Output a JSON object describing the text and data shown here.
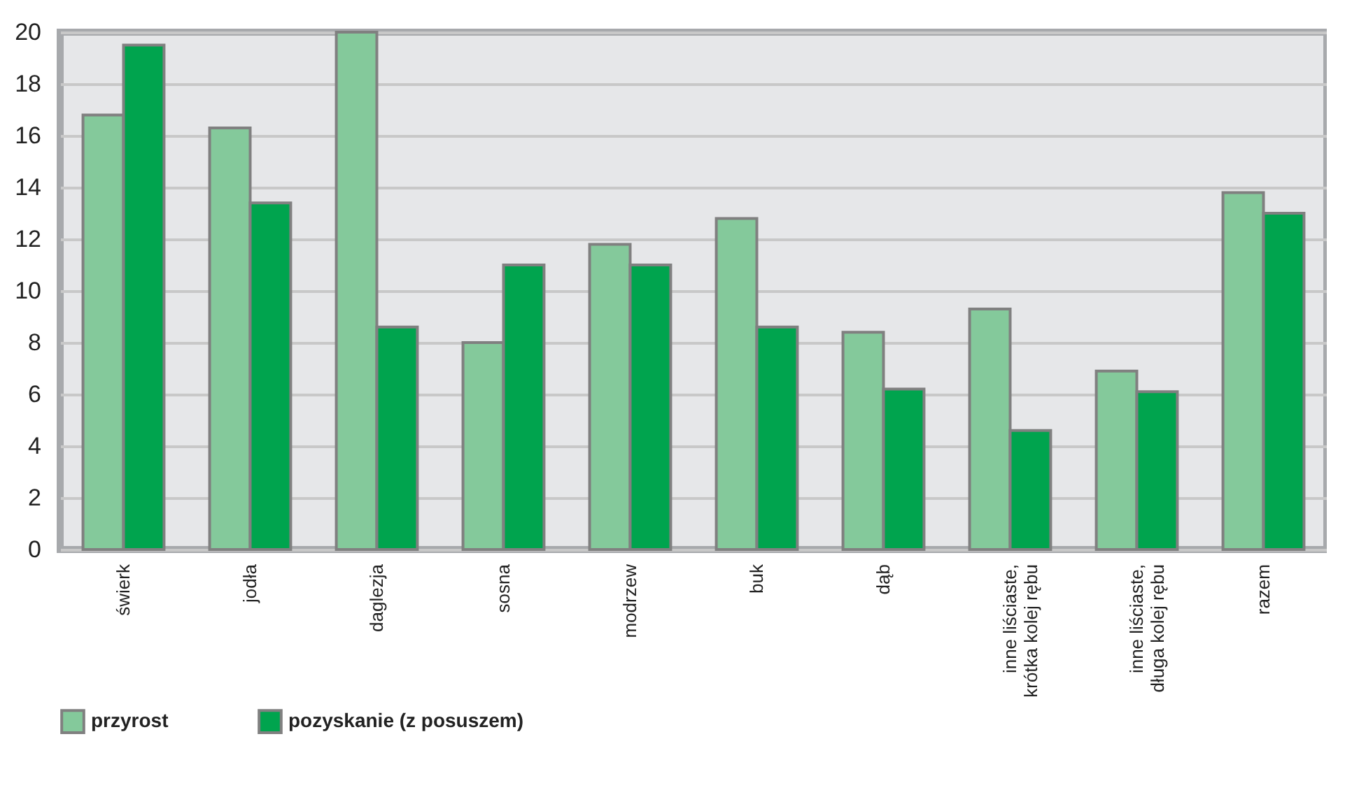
{
  "chart_data": {
    "type": "bar",
    "categories": [
      "świerk",
      "jodła",
      "daglezja",
      "sosna",
      "modrzew",
      "buk",
      "dąb",
      "inne liściaste,\nkrótka kolej rębu",
      "inne liściaste,\ndługa  kolej rębu",
      "razem"
    ],
    "series": [
      {
        "name": "przyrost",
        "color": "#84c99b",
        "values": [
          16.8,
          16.3,
          20.0,
          8.0,
          11.8,
          12.8,
          8.4,
          9.3,
          6.9,
          13.8
        ]
      },
      {
        "name": "pozyskanie (z posuszem)",
        "color": "#00a44e",
        "values": [
          19.5,
          13.4,
          8.6,
          11.0,
          11.0,
          8.6,
          6.2,
          4.6,
          6.1,
          13.0
        ]
      }
    ],
    "ylim": [
      0,
      20
    ],
    "yticks": [
      0,
      2,
      4,
      6,
      8,
      10,
      12,
      14,
      16,
      18,
      20
    ],
    "grid": "y",
    "legend": "bottom left"
  }
}
